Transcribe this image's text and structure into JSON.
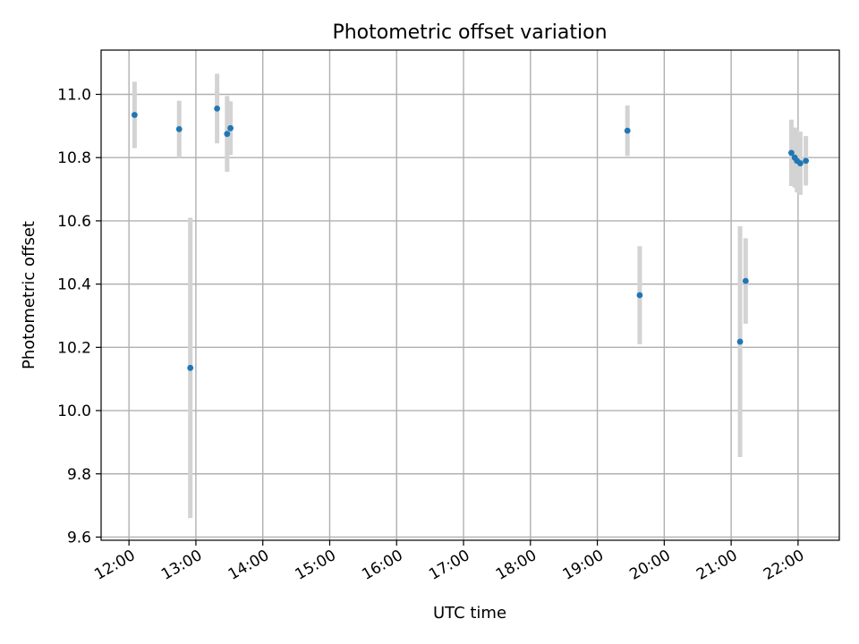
{
  "chart_data": {
    "type": "scatter",
    "title": "Photometric offset variation",
    "xlabel": "UTC time",
    "ylabel": "Photometric offset",
    "x_type": "time",
    "xlim": [
      "11:35",
      "22:37"
    ],
    "ylim": [
      9.59,
      11.14
    ],
    "xticks": [
      "12:00",
      "13:00",
      "14:00",
      "15:00",
      "16:00",
      "17:00",
      "18:00",
      "19:00",
      "20:00",
      "21:00",
      "22:00"
    ],
    "yticks": [
      9.6,
      9.8,
      10.0,
      10.2,
      10.4,
      10.6,
      10.8,
      11.0
    ],
    "ytick_labels": [
      "9.6",
      "9.8",
      "10.0",
      "10.2",
      "10.4",
      "10.6",
      "10.8",
      "11.0"
    ],
    "grid": true,
    "marker_color": "#1f77b4",
    "error_color": "#d3d3d3",
    "points": [
      {
        "x": "12:05",
        "y": 10.935,
        "err": 0.105
      },
      {
        "x": "12:45",
        "y": 10.89,
        "err": 0.09
      },
      {
        "x": "12:55",
        "y": 10.135,
        "err": 0.475
      },
      {
        "x": "13:19",
        "y": 10.955,
        "err": 0.11
      },
      {
        "x": "13:28",
        "y": 10.875,
        "err": 0.12
      },
      {
        "x": "13:31",
        "y": 10.893,
        "err": 0.085
      },
      {
        "x": "19:27",
        "y": 10.885,
        "err": 0.08
      },
      {
        "x": "19:38",
        "y": 10.365,
        "err": 0.155
      },
      {
        "x": "21:08",
        "y": 10.218,
        "err": 0.365
      },
      {
        "x": "21:13",
        "y": 10.41,
        "err": 0.135
      },
      {
        "x": "21:54",
        "y": 10.815,
        "err": 0.105
      },
      {
        "x": "21:57",
        "y": 10.8,
        "err": 0.095
      },
      {
        "x": "21:59",
        "y": 10.79,
        "err": 0.1
      },
      {
        "x": "22:02",
        "y": 10.782,
        "err": 0.1
      },
      {
        "x": "22:07",
        "y": 10.79,
        "err": 0.078
      }
    ]
  }
}
